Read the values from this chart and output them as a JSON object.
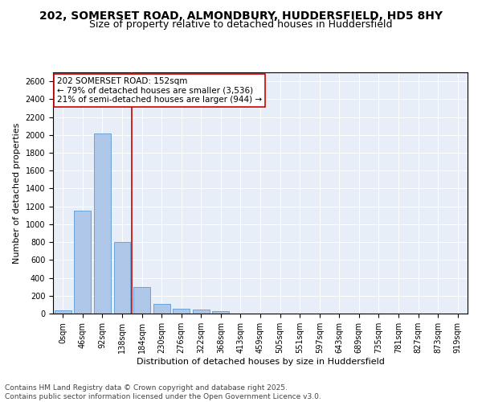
{
  "title": "202, SOMERSET ROAD, ALMONDBURY, HUDDERSFIELD, HD5 8HY",
  "subtitle": "Size of property relative to detached houses in Huddersfield",
  "xlabel": "Distribution of detached houses by size in Huddersfield",
  "ylabel": "Number of detached properties",
  "categories": [
    "0sqm",
    "46sqm",
    "92sqm",
    "138sqm",
    "184sqm",
    "230sqm",
    "276sqm",
    "322sqm",
    "368sqm",
    "413sqm",
    "459sqm",
    "505sqm",
    "551sqm",
    "597sqm",
    "643sqm",
    "689sqm",
    "735sqm",
    "781sqm",
    "827sqm",
    "873sqm",
    "919sqm"
  ],
  "bar_values": [
    35,
    1150,
    2020,
    800,
    300,
    110,
    50,
    45,
    30,
    0,
    0,
    0,
    0,
    0,
    0,
    0,
    0,
    0,
    0,
    0,
    0
  ],
  "bar_color": "#aec6e8",
  "bar_edge_color": "#5b9bd5",
  "ylim": [
    0,
    2700
  ],
  "yticks": [
    0,
    200,
    400,
    600,
    800,
    1000,
    1200,
    1400,
    1600,
    1800,
    2000,
    2200,
    2400,
    2600
  ],
  "vline_x": 3.5,
  "vline_color": "#cc0000",
  "annotation_title": "202 SOMERSET ROAD: 152sqm",
  "annotation_line1": "← 79% of detached houses are smaller (3,536)",
  "annotation_line2": "21% of semi-detached houses are larger (944) →",
  "annotation_box_color": "#cc0000",
  "footer_line1": "Contains HM Land Registry data © Crown copyright and database right 2025.",
  "footer_line2": "Contains public sector information licensed under the Open Government Licence v3.0.",
  "plot_bg_color": "#e8eef7",
  "title_fontsize": 10,
  "subtitle_fontsize": 9,
  "axis_label_fontsize": 8,
  "tick_fontsize": 7,
  "annotation_fontsize": 7.5,
  "footer_fontsize": 6.5
}
